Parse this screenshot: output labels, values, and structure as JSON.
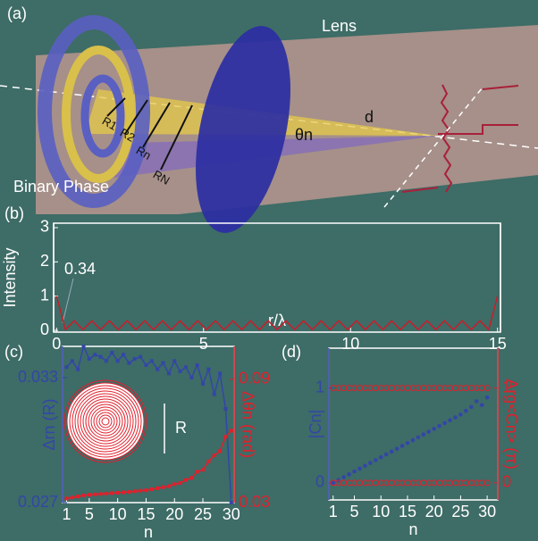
{
  "illustration": {
    "panel_label": "(a)",
    "lens": "Lens",
    "binary_phase": "Binary Phase",
    "radii": [
      "R1",
      "R2",
      "Rn",
      "RN"
    ],
    "d": "d",
    "theta": "θn"
  },
  "chart_data": [
    {
      "type": "line",
      "panel_label": "(b)",
      "x_label": "r/λ",
      "y_label": "Intensity",
      "annotation": "0.34",
      "xlim": [
        -0.1,
        15.1
      ],
      "ylim": [
        -0.05,
        3.13
      ],
      "xticks": [
        0,
        5,
        10,
        15
      ],
      "yticks": [
        0,
        1,
        2,
        3
      ],
      "x": [
        0,
        0.3,
        0.6,
        0.9,
        1.2,
        1.5,
        1.8,
        2.1,
        2.4,
        2.7,
        3,
        3.3,
        3.6,
        3.9,
        4.2,
        4.5,
        4.8,
        5.1,
        5.4,
        5.7,
        6,
        6.3,
        6.6,
        6.9,
        7.2,
        7.5,
        7.8,
        8.1,
        8.4,
        8.7,
        9,
        9.3,
        9.6,
        9.9,
        10.2,
        10.5,
        10.8,
        11.1,
        11.4,
        11.7,
        12,
        12.3,
        12.6,
        12.9,
        13.2,
        13.5,
        13.8,
        14.1,
        14.4,
        14.7,
        15
      ],
      "series": [
        {
          "color": "#c81e2a",
          "values": [
            1,
            0.02,
            0.28,
            0.02,
            0.28,
            0.02,
            0.28,
            0.02,
            0.28,
            0.02,
            0.28,
            0.02,
            0.28,
            0.02,
            0.28,
            0.02,
            0.28,
            0.02,
            0.28,
            0.02,
            0.28,
            0.02,
            0.28,
            0.02,
            0.28,
            0.02,
            0.28,
            0.02,
            0.28,
            0.02,
            0.28,
            0.02,
            0.28,
            0.02,
            0.28,
            0.02,
            0.28,
            0.02,
            0.28,
            0.02,
            0.28,
            0.02,
            0.28,
            0.02,
            0.28,
            0.02,
            0.28,
            0.02,
            0.28,
            0.02,
            1
          ]
        }
      ]
    },
    {
      "type": "line",
      "panel_label": "(c)",
      "x_label": "n",
      "y_label": "Δrn (R)",
      "y2_label": "Δθn (rad)",
      "inset_label": "R",
      "xlim": [
        0.3,
        30.5
      ],
      "ylim": [
        0.027,
        0.0345
      ],
      "y2lim": [
        0.03,
        0.106
      ],
      "xticks": [
        1,
        5,
        10,
        15,
        20,
        25,
        30
      ],
      "yticks": [
        0.027,
        0.033
      ],
      "y2ticks": [
        0.03,
        0.09
      ],
      "x": [
        1,
        2,
        3,
        4,
        5,
        6,
        7,
        8,
        9,
        10,
        11,
        12,
        13,
        14,
        15,
        16,
        17,
        18,
        19,
        20,
        21,
        22,
        23,
        24,
        25,
        26,
        27,
        28,
        29,
        30
      ],
      "series": [
        {
          "color": "#3346a8",
          "values": [
            0.0335,
            0.0338,
            0.0334,
            0.0345,
            0.0339,
            0.0341,
            0.034,
            0.0338,
            0.0342,
            0.0338,
            0.0341,
            0.0337,
            0.0339,
            0.034,
            0.0336,
            0.0338,
            0.0334,
            0.0337,
            0.0332,
            0.0338,
            0.0333,
            0.0335,
            0.033,
            0.0336,
            0.0327,
            0.0334,
            0.0322,
            0.0332,
            0.0315,
            0.027
          ]
        },
        {
          "color": "#e0202c",
          "axis": "y2",
          "values": [
            0.032,
            0.0325,
            0.033,
            0.0335,
            0.0338,
            0.034,
            0.0342,
            0.0344,
            0.0346,
            0.0348,
            0.035,
            0.0352,
            0.0355,
            0.0358,
            0.036,
            0.0365,
            0.037,
            0.0375,
            0.038,
            0.039,
            0.0395,
            0.041,
            0.042,
            0.045,
            0.046,
            0.05,
            0.053,
            0.055,
            0.062,
            0.065
          ]
        }
      ]
    },
    {
      "type": "scatter",
      "panel_label": "(d)",
      "x_label": "n",
      "y_label": "|Cn|",
      "y2_label": "Arg<Cn> (π)",
      "xlim": [
        0.2,
        32
      ],
      "ylim": [
        -0.18,
        1.42
      ],
      "y2lim": [
        -0.18,
        1.42
      ],
      "xticks": [
        1,
        5,
        10,
        15,
        20,
        25,
        30
      ],
      "yticks": [
        0,
        1
      ],
      "y2ticks": [
        0,
        1
      ],
      "x": [
        1,
        2,
        3,
        4,
        5,
        6,
        7,
        8,
        9,
        10,
        11,
        12,
        13,
        14,
        15,
        16,
        17,
        18,
        19,
        20,
        21,
        22,
        23,
        24,
        25,
        26,
        27,
        28,
        29,
        30
      ],
      "series": [
        {
          "color": "#3346a8",
          "marker": "filled",
          "values": [
            0,
            0.03,
            0.06,
            0.09,
            0.12,
            0.15,
            0.18,
            0.21,
            0.24,
            0.27,
            0.3,
            0.33,
            0.36,
            0.39,
            0.42,
            0.45,
            0.48,
            0.51,
            0.54,
            0.57,
            0.6,
            0.63,
            0.66,
            0.69,
            0.72,
            0.76,
            0.8,
            0.86,
            0.82,
            0.9
          ]
        },
        {
          "color": "#e0202c",
          "marker": "open",
          "axis": "y2",
          "values": [
            1,
            1,
            1,
            1,
            1,
            1,
            1,
            1,
            1,
            1,
            1,
            1,
            1,
            1,
            1,
            1,
            1,
            1,
            1,
            1,
            1,
            1,
            1,
            1,
            1,
            1,
            1,
            1,
            1,
            1
          ]
        },
        {
          "color": "#e0202c",
          "marker": "open",
          "axis": "y2",
          "values": [
            0,
            0,
            0,
            0,
            0,
            0,
            0,
            0,
            0,
            0,
            0,
            0,
            0,
            0,
            0,
            0,
            0,
            0,
            0,
            0,
            0,
            0,
            0,
            0,
            0,
            0,
            0,
            0,
            0,
            0
          ]
        }
      ]
    }
  ]
}
